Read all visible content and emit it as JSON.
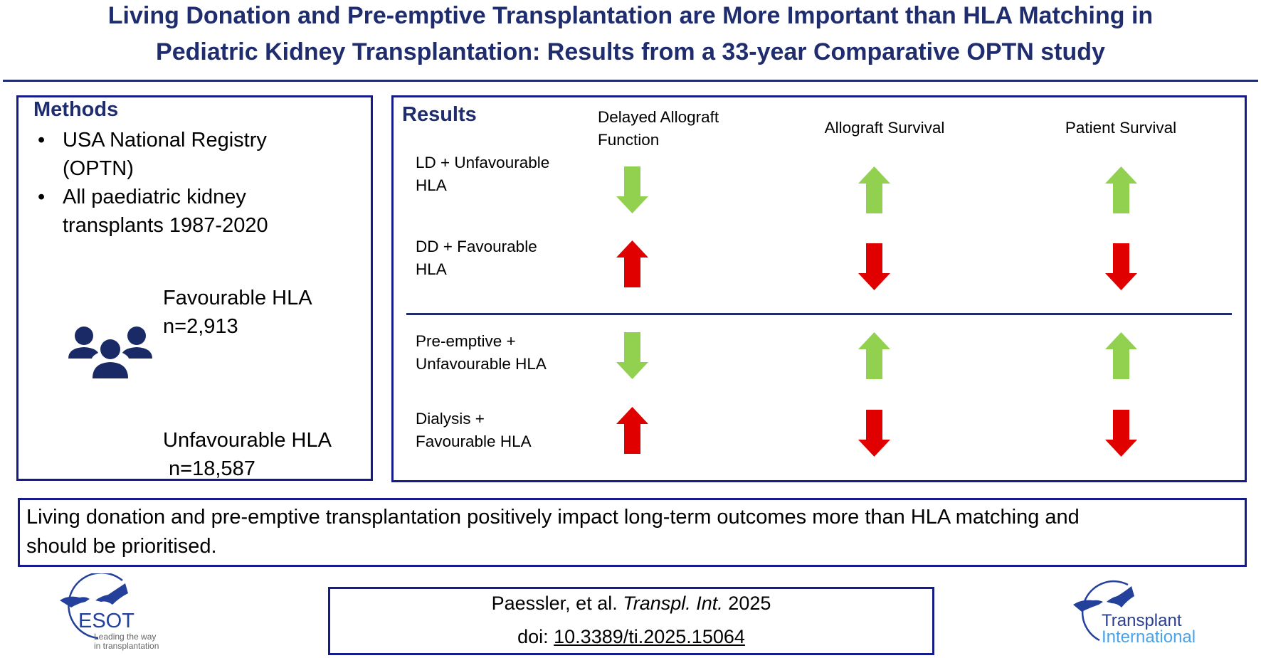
{
  "title": {
    "line1": "Living Donation and Pre-emptive Transplantation are More Important than HLA Matching in",
    "line2": "Pediatric Kidney Transplantation: Results from a 33-year Comparative OPTN study"
  },
  "methods": {
    "heading": "Methods",
    "bullets": [
      {
        "l1": "USA National Registry",
        "l2": "(OPTN)"
      },
      {
        "l1": "All paediatric kidney",
        "l2": "transplants 1987-2020"
      }
    ],
    "groups": [
      {
        "label": "Favourable HLA",
        "n": "n=2,913"
      },
      {
        "label": "Unfavourable HLA",
        "n": " n=18,587"
      }
    ],
    "icon": "people-group-icon"
  },
  "results": {
    "heading": "Results",
    "columns": [
      {
        "l1": "Delayed Allograft",
        "l2": "Function"
      },
      {
        "l1": "Allograft Survival"
      },
      {
        "l1": "Patient Survival"
      }
    ],
    "rows": [
      {
        "l1": "LD + Unfavourable",
        "l2": "HLA",
        "arrows": [
          "down-green",
          "up-green",
          "up-green"
        ]
      },
      {
        "l1": "DD + Favourable",
        "l2": "HLA",
        "arrows": [
          "up-red",
          "down-red",
          "down-red"
        ]
      },
      {
        "l1": "Pre-emptive +",
        "l2": "Unfavourable HLA",
        "arrows": [
          "down-green",
          "up-green",
          "up-green"
        ]
      },
      {
        "l1": "Dialysis +",
        "l2": "Favourable HLA",
        "arrows": [
          "up-red",
          "down-red",
          "down-red"
        ]
      }
    ]
  },
  "conclusion": {
    "line1": "Living donation and pre-emptive transplantation positively impact long-term outcomes more than HLA matching and",
    "line2": "should be prioritised."
  },
  "citation": {
    "authors": "Paessler, et al. ",
    "journal": "Transpl. Int.",
    "year": " 2025",
    "doi_label": "doi: ",
    "doi": "10.3389/ti.2025.15064"
  },
  "logos": {
    "esot": {
      "name": "ESOT",
      "tagline1": "Leading the way",
      "tagline2": "in transplantation"
    },
    "ti": {
      "line1": "Transplant",
      "line2": "International"
    }
  },
  "colors": {
    "navy": "#1f2d6e",
    "border": "#161b8c",
    "green": "#92d050",
    "red": "#e00000"
  }
}
